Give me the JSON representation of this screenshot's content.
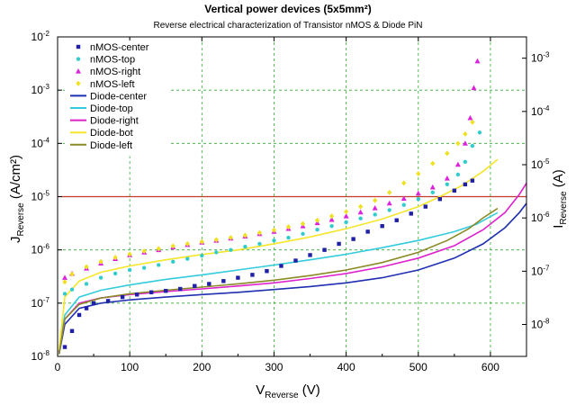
{
  "chart_data": {
    "type": "scatter",
    "title": "Vertical power devices (5x5mm²)",
    "subtitle": "Reverse electrical characterization of Transistor nMOS & Diode PiN",
    "xlabel": {
      "main": "V",
      "sub": "Reverse",
      "unit": " (V)"
    },
    "ylabel": {
      "main": "J",
      "sub": "Reverse",
      "unit": " (A/cm²)"
    },
    "y2label": {
      "main": "I",
      "sub": "Reverse",
      "unit": " (A)"
    },
    "xlim": [
      0,
      650
    ],
    "ylim_log10": [
      -8,
      -2
    ],
    "y2lim_log10": [
      -8.6,
      -2.6
    ],
    "yscale": "log",
    "grid": true,
    "legend_position": "top-left",
    "x_ticks": [
      {
        "value": 0,
        "label": "0"
      },
      {
        "value": 100,
        "label": "100"
      },
      {
        "value": 200,
        "label": "200"
      },
      {
        "value": 300,
        "label": "300"
      },
      {
        "value": 400,
        "label": "400"
      },
      {
        "value": 500,
        "label": "500"
      },
      {
        "value": 600,
        "label": "600"
      }
    ],
    "y_ticks": [
      {
        "exp": -8,
        "label": "10",
        "sup": "-8"
      },
      {
        "exp": -7,
        "label": "10",
        "sup": "-7"
      },
      {
        "exp": -6,
        "label": "10",
        "sup": "-6"
      },
      {
        "exp": -5,
        "label": "10",
        "sup": "-5"
      },
      {
        "exp": -4,
        "label": "10",
        "sup": "-4"
      },
      {
        "exp": -3,
        "label": "10",
        "sup": "-3"
      },
      {
        "exp": -2,
        "label": "10",
        "sup": "-2"
      }
    ],
    "y2_ticks": [
      {
        "exp": -8,
        "label": "10",
        "sup": "-8"
      },
      {
        "exp": -7,
        "label": "10",
        "sup": "-7"
      },
      {
        "exp": -6,
        "label": "10",
        "sup": "-6"
      },
      {
        "exp": -5,
        "label": "10",
        "sup": "-5"
      },
      {
        "exp": -4,
        "label": "10",
        "sup": "-4"
      },
      {
        "exp": -3,
        "label": "10",
        "sup": "-3"
      }
    ],
    "reference_line": {
      "y": 1e-05,
      "color": "#c0392b"
    },
    "series": [
      {
        "name": "nMOS-center",
        "kind": "points",
        "marker": "square",
        "color": "#1f1fa8",
        "points": [
          [
            10,
            1.5e-08
          ],
          [
            20,
            3e-08
          ],
          [
            30,
            6e-08
          ],
          [
            40,
            8e-08
          ],
          [
            50,
            1e-07
          ],
          [
            70,
            1.1e-07
          ],
          [
            90,
            1.3e-07
          ],
          [
            110,
            1.45e-07
          ],
          [
            130,
            1.6e-07
          ],
          [
            150,
            1.7e-07
          ],
          [
            170,
            1.85e-07
          ],
          [
            190,
            2.1e-07
          ],
          [
            210,
            2.3e-07
          ],
          [
            230,
            2.6e-07
          ],
          [
            250,
            3e-07
          ],
          [
            270,
            3.4e-07
          ],
          [
            290,
            4e-07
          ],
          [
            310,
            5e-07
          ],
          [
            330,
            6.3e-07
          ],
          [
            350,
            8e-07
          ],
          [
            370,
            1e-06
          ],
          [
            390,
            1.3e-06
          ],
          [
            410,
            1.6e-06
          ],
          [
            430,
            2.2e-06
          ],
          [
            450,
            2.8e-06
          ],
          [
            470,
            3.6e-06
          ],
          [
            490,
            4.8e-06
          ],
          [
            510,
            6.5e-06
          ],
          [
            530,
            9e-06
          ],
          [
            550,
            1.3e-05
          ],
          [
            565,
            1.7e-05
          ],
          [
            575,
            2e-05
          ]
        ]
      },
      {
        "name": "nMOS-top",
        "kind": "points",
        "marker": "circle",
        "color": "#33cccc",
        "points": [
          [
            10,
            1.5e-07
          ],
          [
            20,
            1.8e-07
          ],
          [
            40,
            2.3e-07
          ],
          [
            60,
            3e-07
          ],
          [
            80,
            3.6e-07
          ],
          [
            100,
            4.2e-07
          ],
          [
            120,
            4.6e-07
          ],
          [
            140,
            5.2e-07
          ],
          [
            160,
            6e-07
          ],
          [
            180,
            6.8e-07
          ],
          [
            200,
            7.8e-07
          ],
          [
            220,
            9e-07
          ],
          [
            240,
            1e-06
          ],
          [
            260,
            1.15e-06
          ],
          [
            280,
            1.3e-06
          ],
          [
            300,
            1.5e-06
          ],
          [
            320,
            1.7e-06
          ],
          [
            340,
            2e-06
          ],
          [
            360,
            2.4e-06
          ],
          [
            380,
            2.8e-06
          ],
          [
            400,
            3.3e-06
          ],
          [
            420,
            3.9e-06
          ],
          [
            440,
            4.6e-06
          ],
          [
            460,
            5.6e-06
          ],
          [
            480,
            7e-06
          ],
          [
            500,
            9e-06
          ],
          [
            520,
            1.2e-05
          ],
          [
            540,
            1.7e-05
          ],
          [
            555,
            2.6e-05
          ],
          [
            565,
            4.5e-05
          ],
          [
            575,
            9e-05
          ],
          [
            585,
            0.00016
          ]
        ]
      },
      {
        "name": "nMOS-right",
        "kind": "points",
        "marker": "triangle",
        "color": "#dd22dd",
        "points": [
          [
            10,
            3e-07
          ],
          [
            20,
            3.6e-07
          ],
          [
            40,
            4.5e-07
          ],
          [
            60,
            5.6e-07
          ],
          [
            80,
            6.8e-07
          ],
          [
            100,
            8e-07
          ],
          [
            120,
            9e-07
          ],
          [
            140,
            1e-06
          ],
          [
            160,
            1.12e-06
          ],
          [
            180,
            1.25e-06
          ],
          [
            200,
            1.38e-06
          ],
          [
            220,
            1.5e-06
          ],
          [
            240,
            1.65e-06
          ],
          [
            260,
            1.8e-06
          ],
          [
            280,
            2e-06
          ],
          [
            300,
            2.2e-06
          ],
          [
            320,
            2.5e-06
          ],
          [
            340,
            2.8e-06
          ],
          [
            360,
            3.2e-06
          ],
          [
            380,
            3.7e-06
          ],
          [
            400,
            4.3e-06
          ],
          [
            420,
            5.1e-06
          ],
          [
            440,
            6.1e-06
          ],
          [
            460,
            7.5e-06
          ],
          [
            480,
            9.2e-06
          ],
          [
            500,
            1.15e-05
          ],
          [
            520,
            1.5e-05
          ],
          [
            540,
            2.2e-05
          ],
          [
            555,
            4e-05
          ],
          [
            565,
            0.0001
          ],
          [
            572,
            0.0003
          ],
          [
            577,
            0.0011
          ],
          [
            582,
            0.0035
          ]
        ]
      },
      {
        "name": "nMOS-left",
        "kind": "points",
        "marker": "diamond",
        "color": "#f0e020",
        "points": [
          [
            10,
            2.5e-07
          ],
          [
            20,
            3.5e-07
          ],
          [
            40,
            4.8e-07
          ],
          [
            60,
            6e-07
          ],
          [
            80,
            7.2e-07
          ],
          [
            100,
            8.3e-07
          ],
          [
            120,
            9.5e-07
          ],
          [
            140,
            1.05e-06
          ],
          [
            160,
            1.18e-06
          ],
          [
            180,
            1.3e-06
          ],
          [
            200,
            1.42e-06
          ],
          [
            220,
            1.55e-06
          ],
          [
            240,
            1.7e-06
          ],
          [
            260,
            1.88e-06
          ],
          [
            280,
            2.1e-06
          ],
          [
            300,
            2.35e-06
          ],
          [
            320,
            2.7e-06
          ],
          [
            340,
            3.1e-06
          ],
          [
            360,
            3.6e-06
          ],
          [
            380,
            4.3e-06
          ],
          [
            400,
            5.2e-06
          ],
          [
            420,
            6.5e-06
          ],
          [
            440,
            8.5e-06
          ],
          [
            460,
            1.2e-05
          ],
          [
            480,
            1.8e-05
          ],
          [
            500,
            2.7e-05
          ],
          [
            520,
            4.2e-05
          ],
          [
            540,
            6.5e-05
          ],
          [
            555,
            0.0001
          ],
          [
            565,
            0.00015
          ],
          [
            575,
            0.00025
          ]
        ]
      },
      {
        "name": "Diode-center",
        "kind": "line",
        "color": "#1f2fb0",
        "points": [
          [
            2,
            1.1e-08
          ],
          [
            10,
            4e-08
          ],
          [
            30,
            8e-08
          ],
          [
            60,
            1e-07
          ],
          [
            100,
            1.15e-07
          ],
          [
            150,
            1.3e-07
          ],
          [
            200,
            1.45e-07
          ],
          [
            250,
            1.6e-07
          ],
          [
            300,
            1.8e-07
          ],
          [
            350,
            2.05e-07
          ],
          [
            400,
            2.4e-07
          ],
          [
            450,
            3e-07
          ],
          [
            500,
            4.2e-07
          ],
          [
            550,
            7e-07
          ],
          [
            590,
            1.3e-06
          ],
          [
            620,
            2.6e-06
          ],
          [
            640,
            5e-06
          ],
          [
            650,
            7.5e-06
          ]
        ]
      },
      {
        "name": "Diode-top",
        "kind": "line",
        "color": "#33ccdd",
        "points": [
          [
            2,
            1.2e-08
          ],
          [
            10,
            6e-08
          ],
          [
            30,
            1.3e-07
          ],
          [
            60,
            1.75e-07
          ],
          [
            100,
            2.2e-07
          ],
          [
            150,
            2.8e-07
          ],
          [
            200,
            3.4e-07
          ],
          [
            250,
            4.2e-07
          ],
          [
            300,
            5.2e-07
          ],
          [
            350,
            6.5e-07
          ],
          [
            400,
            8.3e-07
          ],
          [
            450,
            1.1e-06
          ],
          [
            500,
            1.5e-06
          ],
          [
            550,
            2.2e-06
          ],
          [
            580,
            3e-06
          ],
          [
            610,
            5e-06
          ]
        ]
      },
      {
        "name": "Diode-right",
        "kind": "line",
        "color": "#dd22cc",
        "points": [
          [
            2,
            1.2e-08
          ],
          [
            10,
            5e-08
          ],
          [
            30,
            1e-07
          ],
          [
            60,
            1.25e-07
          ],
          [
            100,
            1.45e-07
          ],
          [
            150,
            1.65e-07
          ],
          [
            200,
            1.85e-07
          ],
          [
            250,
            2.1e-07
          ],
          [
            300,
            2.4e-07
          ],
          [
            350,
            2.9e-07
          ],
          [
            400,
            3.6e-07
          ],
          [
            450,
            4.8e-07
          ],
          [
            500,
            7e-07
          ],
          [
            550,
            1.2e-06
          ],
          [
            590,
            2.4e-06
          ],
          [
            620,
            5e-06
          ],
          [
            640,
            1.1e-05
          ],
          [
            650,
            1.8e-05
          ]
        ]
      },
      {
        "name": "Diode-bot",
        "kind": "line",
        "color": "#f5e62a",
        "points": [
          [
            2,
            1.3e-08
          ],
          [
            10,
            1.3e-07
          ],
          [
            30,
            2.6e-07
          ],
          [
            60,
            3.8e-07
          ],
          [
            100,
            5e-07
          ],
          [
            150,
            6.5e-07
          ],
          [
            200,
            8.2e-07
          ],
          [
            250,
            1e-06
          ],
          [
            300,
            1.3e-06
          ],
          [
            350,
            1.75e-06
          ],
          [
            400,
            2.5e-06
          ],
          [
            450,
            3.8e-06
          ],
          [
            500,
            6.5e-06
          ],
          [
            530,
            1e-05
          ],
          [
            560,
            1.6e-05
          ],
          [
            590,
            3e-05
          ],
          [
            610,
            5e-05
          ]
        ]
      },
      {
        "name": "Diode-left",
        "kind": "line",
        "color": "#8a8a26",
        "points": [
          [
            2,
            1.1e-08
          ],
          [
            10,
            5e-08
          ],
          [
            30,
            9.5e-08
          ],
          [
            60,
            1.25e-07
          ],
          [
            100,
            1.5e-07
          ],
          [
            150,
            1.75e-07
          ],
          [
            200,
            2e-07
          ],
          [
            250,
            2.3e-07
          ],
          [
            300,
            2.7e-07
          ],
          [
            350,
            3.3e-07
          ],
          [
            400,
            4.2e-07
          ],
          [
            450,
            5.8e-07
          ],
          [
            500,
            9e-07
          ],
          [
            540,
            1.5e-06
          ],
          [
            570,
            2.5e-06
          ],
          [
            590,
            4e-06
          ],
          [
            610,
            6e-06
          ]
        ]
      }
    ]
  }
}
